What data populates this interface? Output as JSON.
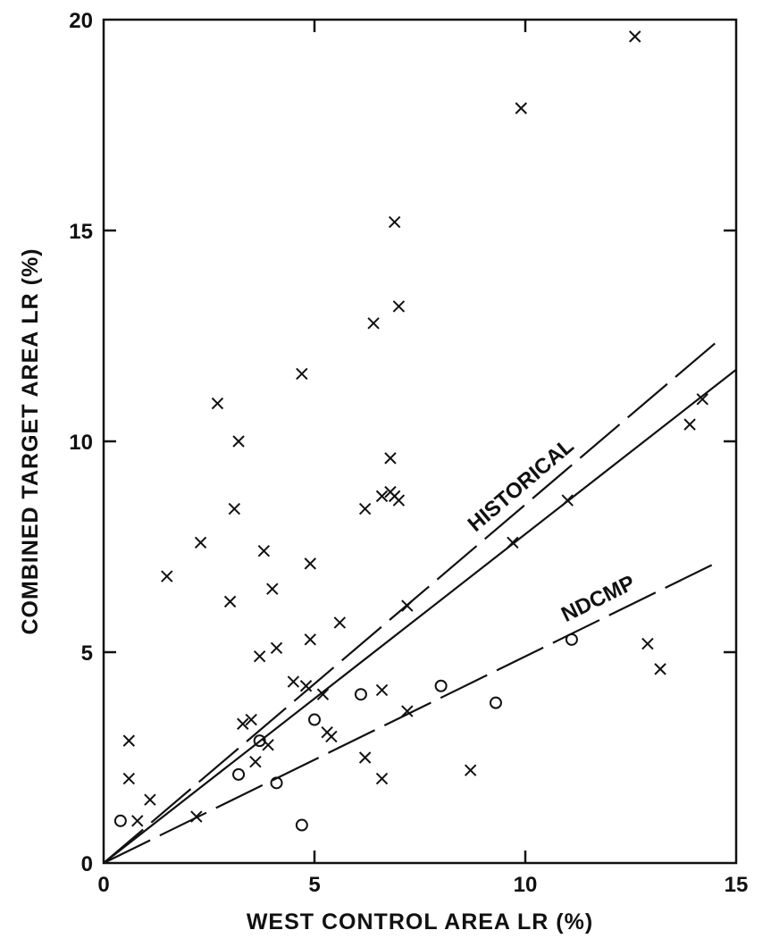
{
  "chart_data": {
    "type": "scatter",
    "title": "",
    "xlabel": "WEST CONTROL AREA LR (%)",
    "ylabel": "COMBINED TARGET AREA LR (%)",
    "xlim": [
      0,
      15
    ],
    "ylim": [
      0,
      20
    ],
    "x_ticks": [
      0,
      5,
      10,
      15
    ],
    "y_ticks": [
      0,
      5,
      10,
      15,
      20
    ],
    "grid": false,
    "legend": "none",
    "series": [
      {
        "marker": "x",
        "points": [
          [
            12.6,
            19.6
          ],
          [
            9.9,
            17.9
          ],
          [
            6.9,
            15.2
          ],
          [
            7.0,
            13.2
          ],
          [
            6.4,
            12.8
          ],
          [
            4.7,
            11.6
          ],
          [
            2.7,
            10.9
          ],
          [
            3.2,
            10.0
          ],
          [
            14.2,
            11.0
          ],
          [
            13.9,
            10.4
          ],
          [
            6.8,
            9.6
          ],
          [
            6.8,
            8.8
          ],
          [
            6.6,
            8.7
          ],
          [
            6.9,
            8.7
          ],
          [
            7.0,
            8.6
          ],
          [
            3.1,
            8.4
          ],
          [
            6.2,
            8.4
          ],
          [
            11.0,
            8.6
          ],
          [
            2.3,
            7.6
          ],
          [
            9.7,
            7.6
          ],
          [
            3.8,
            7.4
          ],
          [
            4.9,
            7.1
          ],
          [
            1.5,
            6.8
          ],
          [
            4.0,
            6.5
          ],
          [
            3.0,
            6.2
          ],
          [
            7.2,
            6.1
          ],
          [
            5.6,
            5.7
          ],
          [
            4.9,
            5.3
          ],
          [
            12.9,
            5.2
          ],
          [
            4.1,
            5.1
          ],
          [
            3.7,
            4.9
          ],
          [
            13.2,
            4.6
          ],
          [
            4.5,
            4.3
          ],
          [
            4.8,
            4.2
          ],
          [
            6.6,
            4.1
          ],
          [
            5.2,
            4.0
          ],
          [
            7.2,
            3.6
          ],
          [
            3.5,
            3.4
          ],
          [
            3.3,
            3.3
          ],
          [
            5.3,
            3.1
          ],
          [
            5.4,
            3.0
          ],
          [
            0.6,
            2.9
          ],
          [
            3.9,
            2.8
          ],
          [
            3.6,
            2.4
          ],
          [
            6.2,
            2.5
          ],
          [
            8.7,
            2.2
          ],
          [
            0.6,
            2.0
          ],
          [
            6.6,
            2.0
          ],
          [
            1.1,
            1.5
          ],
          [
            2.2,
            1.1
          ],
          [
            0.8,
            1.0
          ]
        ]
      },
      {
        "marker": "o",
        "points": [
          [
            11.1,
            5.3
          ],
          [
            6.1,
            4.0
          ],
          [
            8.0,
            4.2
          ],
          [
            9.3,
            3.8
          ],
          [
            5.0,
            3.4
          ],
          [
            3.7,
            2.9
          ],
          [
            3.2,
            2.1
          ],
          [
            4.1,
            1.9
          ],
          [
            0.4,
            1.0
          ],
          [
            4.7,
            0.9
          ]
        ]
      }
    ],
    "lines": [
      {
        "name": "HISTORICAL",
        "style": "long-dash",
        "slope": 0.85,
        "x_range": [
          0,
          14.6
        ]
      },
      {
        "name": "",
        "style": "solid",
        "slope": 0.78,
        "x_range": [
          0,
          15
        ]
      },
      {
        "name": "NDCMP",
        "style": "long-dash",
        "slope": 0.49,
        "x_range": [
          0,
          14.6
        ]
      }
    ]
  }
}
